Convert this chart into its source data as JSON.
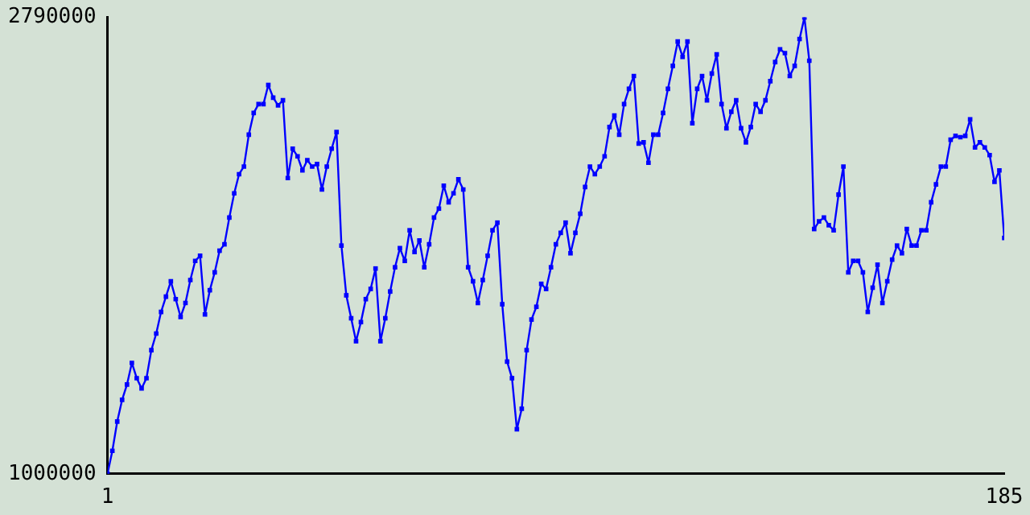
{
  "chart_data": {
    "type": "line",
    "marker": "square",
    "grid": false,
    "legend": false,
    "x": [
      1,
      2,
      3,
      4,
      5,
      6,
      7,
      8,
      9,
      10,
      11,
      12,
      13,
      14,
      15,
      16,
      17,
      18,
      19,
      20,
      21,
      22,
      23,
      24,
      25,
      26,
      27,
      28,
      29,
      30,
      31,
      32,
      33,
      34,
      35,
      36,
      37,
      38,
      39,
      40,
      41,
      42,
      43,
      44,
      45,
      46,
      47,
      48,
      49,
      50,
      51,
      52,
      53,
      54,
      55,
      56,
      57,
      58,
      59,
      60,
      61,
      62,
      63,
      64,
      65,
      66,
      67,
      68,
      69,
      70,
      71,
      72,
      73,
      74,
      75,
      76,
      77,
      78,
      79,
      80,
      81,
      82,
      83,
      84,
      85,
      86,
      87,
      88,
      89,
      90,
      91,
      92,
      93,
      94,
      95,
      96,
      97,
      98,
      99,
      100,
      101,
      102,
      103,
      104,
      105,
      106,
      107,
      108,
      109,
      110,
      111,
      112,
      113,
      114,
      115,
      116,
      117,
      118,
      119,
      120,
      121,
      122,
      123,
      124,
      125,
      126,
      127,
      128,
      129,
      130,
      131,
      132,
      133,
      134,
      135,
      136,
      137,
      138,
      139,
      140,
      141,
      142,
      143,
      144,
      145,
      146,
      147,
      148,
      149,
      150,
      151,
      152,
      153,
      154,
      155,
      156,
      157,
      158,
      159,
      160,
      161,
      162,
      163,
      164,
      165,
      166,
      167,
      168,
      169,
      170,
      171,
      172,
      173,
      174,
      175,
      176,
      177,
      178,
      179,
      180,
      181,
      182,
      183,
      184,
      185
    ],
    "series": [
      {
        "color": "#0000ff",
        "values": [
          1000000,
          1090000,
          1205000,
          1290000,
          1350000,
          1435000,
          1375000,
          1335000,
          1375000,
          1485000,
          1550000,
          1635000,
          1695000,
          1755000,
          1685000,
          1615000,
          1670000,
          1760000,
          1835000,
          1855000,
          1625000,
          1720000,
          1790000,
          1875000,
          1900000,
          2005000,
          2100000,
          2175000,
          2205000,
          2330000,
          2415000,
          2450000,
          2450000,
          2525000,
          2475000,
          2445000,
          2465000,
          2160000,
          2275000,
          2245000,
          2190000,
          2230000,
          2205000,
          2215000,
          2115000,
          2205000,
          2275000,
          2340000,
          1895000,
          1700000,
          1610000,
          1520000,
          1595000,
          1685000,
          1725000,
          1805000,
          1520000,
          1610000,
          1715000,
          1810000,
          1885000,
          1835000,
          1955000,
          1870000,
          1915000,
          1810000,
          1900000,
          2005000,
          2040000,
          2130000,
          2065000,
          2100000,
          2155000,
          2115000,
          1810000,
          1755000,
          1670000,
          1760000,
          1855000,
          1955000,
          1985000,
          1665000,
          1440000,
          1375000,
          1175000,
          1255000,
          1485000,
          1605000,
          1655000,
          1745000,
          1725000,
          1810000,
          1900000,
          1945000,
          1985000,
          1865000,
          1945000,
          2020000,
          2125000,
          2205000,
          2175000,
          2205000,
          2245000,
          2360000,
          2405000,
          2330000,
          2450000,
          2510000,
          2560000,
          2295000,
          2300000,
          2220000,
          2330000,
          2330000,
          2415000,
          2510000,
          2600000,
          2695000,
          2635000,
          2695000,
          2375000,
          2510000,
          2560000,
          2465000,
          2570000,
          2645000,
          2450000,
          2355000,
          2420000,
          2465000,
          2355000,
          2300000,
          2360000,
          2450000,
          2420000,
          2465000,
          2540000,
          2615000,
          2665000,
          2650000,
          2560000,
          2600000,
          2705000,
          2790000,
          2620000,
          1960000,
          1990000,
          2005000,
          1975000,
          1955000,
          2095000,
          2205000,
          1790000,
          1835000,
          1835000,
          1790000,
          1635000,
          1730000,
          1820000,
          1670000,
          1755000,
          1840000,
          1895000,
          1865000,
          1960000,
          1895000,
          1895000,
          1955000,
          1955000,
          2065000,
          2135000,
          2205000,
          2205000,
          2310000,
          2325000,
          2320000,
          2325000,
          2390000,
          2280000,
          2300000,
          2280000,
          2250000,
          2145000,
          2190000,
          1925000
        ]
      }
    ],
    "xlim": [
      1,
      185
    ],
    "xticks": [
      1,
      185
    ],
    "ylim": [
      1000000,
      2790000
    ],
    "yticks": [
      1000000,
      2790000
    ]
  }
}
